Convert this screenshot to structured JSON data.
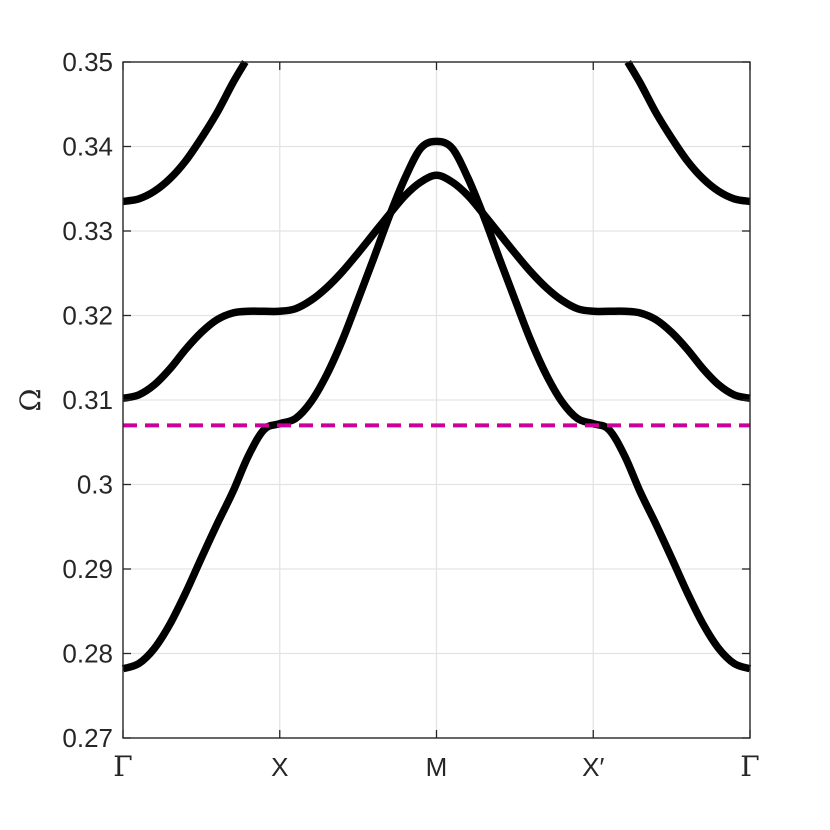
{
  "chart_data": {
    "type": "line",
    "title": "",
    "xlabel": "",
    "ylabel": "Ω",
    "x_categories": [
      "Γ",
      "X",
      "M",
      "X′",
      "Γ"
    ],
    "xlim": [
      0,
      4
    ],
    "ylim": [
      0.27,
      0.35
    ],
    "yticks": [
      0.27,
      0.28,
      0.29,
      0.3,
      0.31,
      0.32,
      0.33,
      0.34,
      0.35
    ],
    "ytick_labels": [
      "0.27",
      "0.28",
      "0.29",
      "0.3",
      "0.31",
      "0.32",
      "0.33",
      "0.34",
      "0.35"
    ],
    "grid": true,
    "legend": "none",
    "series": [
      {
        "x": [
          0,
          0.1,
          0.2,
          0.3,
          0.4,
          0.5,
          0.6,
          0.7,
          0.8,
          0.9,
          1.0,
          1.1,
          1.2,
          1.3,
          1.4,
          1.5,
          1.6,
          1.7,
          1.8,
          1.9,
          2.0,
          2.1,
          2.2,
          2.3,
          2.4,
          2.5,
          2.6,
          2.7,
          2.8,
          2.9,
          3.0,
          3.1,
          3.2,
          3.3,
          3.4,
          3.5,
          3.6,
          3.7,
          3.8,
          3.9,
          4.0
        ],
        "values": [
          0.2782,
          0.2788,
          0.2806,
          0.2835,
          0.2872,
          0.2913,
          0.2953,
          0.2991,
          0.3034,
          0.3065,
          0.3072,
          0.3078,
          0.3098,
          0.313,
          0.3171,
          0.3219,
          0.3268,
          0.3318,
          0.3363,
          0.3398,
          0.3406,
          0.3398,
          0.3363,
          0.3318,
          0.3268,
          0.3219,
          0.3171,
          0.313,
          0.3098,
          0.3078,
          0.3072,
          0.3065,
          0.3034,
          0.2991,
          0.2953,
          0.2913,
          0.2872,
          0.2835,
          0.2806,
          0.2788,
          0.2782
        ],
        "color": "#000000"
      },
      {
        "x": [
          0,
          0.1,
          0.2,
          0.3,
          0.4,
          0.5,
          0.6,
          0.7,
          0.8,
          0.9,
          1.0,
          1.1,
          1.2,
          1.3,
          1.4,
          1.5,
          1.6,
          1.7,
          1.8,
          1.9,
          2.0,
          2.1,
          2.2,
          2.3,
          2.4,
          2.5,
          2.6,
          2.7,
          2.8,
          2.9,
          3.0,
          3.1,
          3.2,
          3.3,
          3.4,
          3.5,
          3.6,
          3.7,
          3.8,
          3.9,
          4.0
        ],
        "values": [
          0.3102,
          0.3106,
          0.3118,
          0.3137,
          0.316,
          0.318,
          0.3195,
          0.3203,
          0.3205,
          0.3205,
          0.3205,
          0.3208,
          0.3218,
          0.3233,
          0.3252,
          0.3274,
          0.3297,
          0.332,
          0.3342,
          0.3358,
          0.3366,
          0.3358,
          0.3342,
          0.332,
          0.3297,
          0.3274,
          0.3252,
          0.3233,
          0.3218,
          0.3208,
          0.3205,
          0.3205,
          0.3205,
          0.3203,
          0.3195,
          0.318,
          0.316,
          0.3137,
          0.3118,
          0.3106,
          0.3102
        ],
        "color": "#000000"
      },
      {
        "x": [
          0,
          0.1,
          0.2,
          0.3,
          0.4,
          0.5,
          0.6,
          0.7,
          0.78
        ],
        "values": [
          0.3335,
          0.3338,
          0.3347,
          0.3362,
          0.3383,
          0.341,
          0.344,
          0.3475,
          0.35
        ],
        "color": "#000000"
      },
      {
        "x": [
          3.22,
          3.3,
          3.4,
          3.5,
          3.6,
          3.7,
          3.8,
          3.9,
          4.0
        ],
        "values": [
          0.35,
          0.3475,
          0.344,
          0.341,
          0.3383,
          0.3362,
          0.3347,
          0.3338,
          0.3335
        ],
        "color": "#000000"
      },
      {
        "x": [
          0,
          4
        ],
        "values": [
          0.307,
          0.307
        ],
        "color": "#cc0099",
        "style": "dashed"
      }
    ]
  }
}
